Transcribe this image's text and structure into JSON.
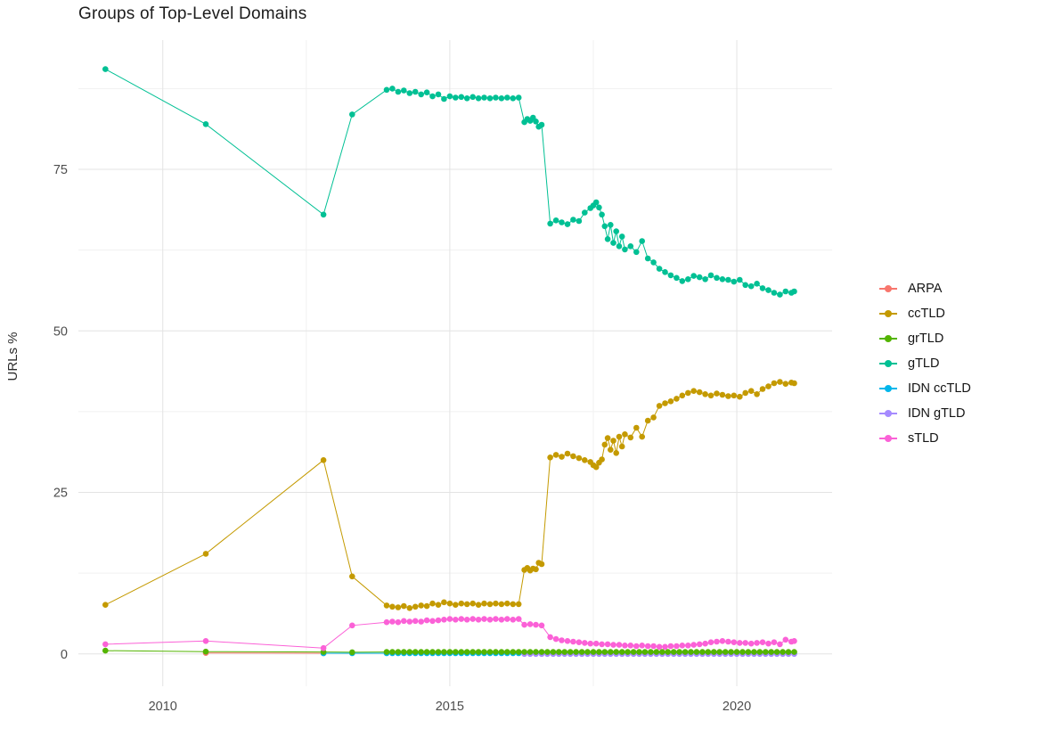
{
  "title": "Groups of Top-Level Domains",
  "legend": {
    "items": [
      {
        "label": "ARPA",
        "color": "#F8766D"
      },
      {
        "label": "ccTLD",
        "color": "#C49A00"
      },
      {
        "label": "grTLD",
        "color": "#53B400"
      },
      {
        "label": "gTLD",
        "color": "#00C094"
      },
      {
        "label": "IDN ccTLD",
        "color": "#00B6EB"
      },
      {
        "label": "IDN gTLD",
        "color": "#A58AFF"
      },
      {
        "label": "sTLD",
        "color": "#FB61D7"
      }
    ]
  },
  "chart_data": {
    "type": "line",
    "title": "Groups of Top-Level Domains",
    "xlabel": "",
    "ylabel": "URLs %",
    "x_ticks": [
      2010,
      2015,
      2020
    ],
    "y_ticks": [
      0,
      25,
      50,
      75
    ],
    "x_minor_ticks": [
      2012.5,
      2017.5
    ],
    "y_minor_ticks": [
      12.5,
      37.5,
      62.5,
      87.5
    ],
    "xlim": [
      2008.53,
      2021.66
    ],
    "ylim": [
      -5,
      95
    ],
    "grid": true,
    "legend_position": "right",
    "background": "#ffffff",
    "series": [
      {
        "name": "ARPA",
        "color": "#F8766D",
        "points": [
          [
            2010.75,
            0.15
          ],
          [
            2012.8,
            0.1
          ]
        ]
      },
      {
        "name": "ccTLD",
        "color": "#C49A00",
        "points": [
          [
            2009.0,
            7.6
          ],
          [
            2010.75,
            15.5
          ],
          [
            2012.8,
            30.0
          ],
          [
            2013.3,
            12.0
          ],
          [
            2013.9,
            7.5
          ],
          [
            2014.0,
            7.3
          ],
          [
            2014.1,
            7.2
          ],
          [
            2014.2,
            7.4
          ],
          [
            2014.3,
            7.1
          ],
          [
            2014.4,
            7.3
          ],
          [
            2014.5,
            7.5
          ],
          [
            2014.6,
            7.4
          ],
          [
            2014.7,
            7.8
          ],
          [
            2014.8,
            7.6
          ],
          [
            2014.9,
            8.0
          ],
          [
            2015.0,
            7.8
          ],
          [
            2015.1,
            7.6
          ],
          [
            2015.2,
            7.8
          ],
          [
            2015.3,
            7.7
          ],
          [
            2015.4,
            7.8
          ],
          [
            2015.5,
            7.6
          ],
          [
            2015.6,
            7.8
          ],
          [
            2015.7,
            7.7
          ],
          [
            2015.8,
            7.8
          ],
          [
            2015.9,
            7.7
          ],
          [
            2016.0,
            7.8
          ],
          [
            2016.1,
            7.7
          ],
          [
            2016.2,
            7.7
          ],
          [
            2016.3,
            13.0
          ],
          [
            2016.35,
            13.3
          ],
          [
            2016.4,
            12.9
          ],
          [
            2016.45,
            13.2
          ],
          [
            2016.5,
            13.1
          ],
          [
            2016.55,
            14.1
          ],
          [
            2016.6,
            13.9
          ],
          [
            2016.75,
            30.4
          ],
          [
            2016.85,
            30.8
          ],
          [
            2016.95,
            30.5
          ],
          [
            2017.05,
            31.0
          ],
          [
            2017.15,
            30.6
          ],
          [
            2017.25,
            30.3
          ],
          [
            2017.35,
            30.0
          ],
          [
            2017.45,
            29.7
          ],
          [
            2017.5,
            29.2
          ],
          [
            2017.55,
            28.9
          ],
          [
            2017.6,
            29.6
          ],
          [
            2017.65,
            30.1
          ],
          [
            2017.7,
            32.4
          ],
          [
            2017.75,
            33.4
          ],
          [
            2017.8,
            31.6
          ],
          [
            2017.85,
            33.0
          ],
          [
            2017.9,
            31.1
          ],
          [
            2017.95,
            33.6
          ],
          [
            2018.0,
            32.1
          ],
          [
            2018.05,
            34.0
          ],
          [
            2018.15,
            33.5
          ],
          [
            2018.25,
            35.0
          ],
          [
            2018.35,
            33.6
          ],
          [
            2018.45,
            36.1
          ],
          [
            2018.55,
            36.6
          ],
          [
            2018.65,
            38.4
          ],
          [
            2018.75,
            38.8
          ],
          [
            2018.85,
            39.1
          ],
          [
            2018.95,
            39.5
          ],
          [
            2019.05,
            40.0
          ],
          [
            2019.15,
            40.4
          ],
          [
            2019.25,
            40.7
          ],
          [
            2019.35,
            40.5
          ],
          [
            2019.45,
            40.2
          ],
          [
            2019.55,
            40.0
          ],
          [
            2019.65,
            40.3
          ],
          [
            2019.75,
            40.1
          ],
          [
            2019.85,
            39.9
          ],
          [
            2019.95,
            40.0
          ],
          [
            2020.05,
            39.8
          ],
          [
            2020.15,
            40.4
          ],
          [
            2020.25,
            40.7
          ],
          [
            2020.35,
            40.2
          ],
          [
            2020.45,
            41.0
          ],
          [
            2020.55,
            41.4
          ],
          [
            2020.65,
            41.9
          ],
          [
            2020.75,
            42.1
          ],
          [
            2020.85,
            41.8
          ],
          [
            2020.95,
            42.0
          ],
          [
            2021.0,
            41.9
          ]
        ]
      },
      {
        "name": "IDN ccTLD",
        "color": "#00B6EB",
        "points": [
          [
            2012.8,
            0.1
          ],
          [
            2013.3,
            0.1
          ]
        ],
        "runs": [
          {
            "from": 2013.9,
            "to": 2021.0,
            "step": 0.1,
            "y": 0.1
          }
        ]
      },
      {
        "name": "IDN gTLD",
        "color": "#A58AFF",
        "points": [],
        "runs": [
          {
            "from": 2016.3,
            "to": 2021.0,
            "step": 0.1,
            "y": 0.0
          }
        ]
      },
      {
        "name": "grTLD",
        "color": "#53B400",
        "points": [
          [
            2009.0,
            0.5
          ],
          [
            2010.75,
            0.35
          ],
          [
            2012.8,
            0.3
          ],
          [
            2013.3,
            0.25
          ]
        ],
        "runs": [
          {
            "from": 2013.9,
            "to": 2021.0,
            "step": 0.1,
            "y": 0.3
          }
        ]
      },
      {
        "name": "gTLD",
        "color": "#00C094",
        "points": [
          [
            2009.0,
            90.5
          ],
          [
            2010.75,
            82.0
          ],
          [
            2012.8,
            68.0
          ],
          [
            2013.3,
            83.5
          ],
          [
            2013.9,
            87.3
          ],
          [
            2014.0,
            87.5
          ],
          [
            2014.1,
            87.0
          ],
          [
            2014.2,
            87.2
          ],
          [
            2014.3,
            86.8
          ],
          [
            2014.4,
            87.0
          ],
          [
            2014.5,
            86.6
          ],
          [
            2014.6,
            86.9
          ],
          [
            2014.7,
            86.3
          ],
          [
            2014.8,
            86.6
          ],
          [
            2014.9,
            85.9
          ],
          [
            2015.0,
            86.3
          ],
          [
            2015.1,
            86.1
          ],
          [
            2015.2,
            86.2
          ],
          [
            2015.3,
            86.0
          ],
          [
            2015.4,
            86.2
          ],
          [
            2015.5,
            86.0
          ],
          [
            2015.6,
            86.1
          ],
          [
            2015.7,
            86.0
          ],
          [
            2015.8,
            86.1
          ],
          [
            2015.9,
            86.0
          ],
          [
            2016.0,
            86.1
          ],
          [
            2016.1,
            86.0
          ],
          [
            2016.2,
            86.1
          ],
          [
            2016.3,
            82.3
          ],
          [
            2016.35,
            82.8
          ],
          [
            2016.4,
            82.5
          ],
          [
            2016.45,
            83.0
          ],
          [
            2016.5,
            82.4
          ],
          [
            2016.55,
            81.6
          ],
          [
            2016.6,
            81.9
          ],
          [
            2016.75,
            66.6
          ],
          [
            2016.85,
            67.1
          ],
          [
            2016.95,
            66.8
          ],
          [
            2017.05,
            66.5
          ],
          [
            2017.15,
            67.2
          ],
          [
            2017.25,
            67.0
          ],
          [
            2017.35,
            68.3
          ],
          [
            2017.45,
            69.0
          ],
          [
            2017.5,
            69.4
          ],
          [
            2017.55,
            69.9
          ],
          [
            2017.6,
            69.1
          ],
          [
            2017.65,
            68.0
          ],
          [
            2017.7,
            66.2
          ],
          [
            2017.75,
            64.2
          ],
          [
            2017.8,
            66.4
          ],
          [
            2017.85,
            63.6
          ],
          [
            2017.9,
            65.4
          ],
          [
            2017.95,
            63.1
          ],
          [
            2018.0,
            64.6
          ],
          [
            2018.05,
            62.6
          ],
          [
            2018.15,
            63.1
          ],
          [
            2018.25,
            62.2
          ],
          [
            2018.35,
            63.9
          ],
          [
            2018.45,
            61.2
          ],
          [
            2018.55,
            60.6
          ],
          [
            2018.65,
            59.6
          ],
          [
            2018.75,
            59.1
          ],
          [
            2018.85,
            58.6
          ],
          [
            2018.95,
            58.2
          ],
          [
            2019.05,
            57.7
          ],
          [
            2019.15,
            58.0
          ],
          [
            2019.25,
            58.5
          ],
          [
            2019.35,
            58.3
          ],
          [
            2019.45,
            58.0
          ],
          [
            2019.55,
            58.6
          ],
          [
            2019.65,
            58.2
          ],
          [
            2019.75,
            58.0
          ],
          [
            2019.85,
            57.9
          ],
          [
            2019.95,
            57.6
          ],
          [
            2020.05,
            57.9
          ],
          [
            2020.15,
            57.1
          ],
          [
            2020.25,
            56.9
          ],
          [
            2020.35,
            57.3
          ],
          [
            2020.45,
            56.6
          ],
          [
            2020.55,
            56.3
          ],
          [
            2020.65,
            55.9
          ],
          [
            2020.75,
            55.6
          ],
          [
            2020.85,
            56.1
          ],
          [
            2020.95,
            55.9
          ],
          [
            2021.0,
            56.1
          ]
        ]
      },
      {
        "name": "sTLD",
        "color": "#FB61D7",
        "points": [
          [
            2009.0,
            1.5
          ],
          [
            2010.75,
            2.0
          ],
          [
            2012.8,
            0.9
          ],
          [
            2013.3,
            4.4
          ],
          [
            2013.9,
            4.9
          ],
          [
            2014.0,
            5.0
          ],
          [
            2014.1,
            4.9
          ],
          [
            2014.2,
            5.1
          ],
          [
            2014.3,
            5.0
          ],
          [
            2014.4,
            5.1
          ],
          [
            2014.5,
            5.0
          ],
          [
            2014.6,
            5.2
          ],
          [
            2014.7,
            5.1
          ],
          [
            2014.8,
            5.2
          ],
          [
            2014.9,
            5.3
          ],
          [
            2015.0,
            5.4
          ],
          [
            2015.1,
            5.3
          ],
          [
            2015.2,
            5.4
          ],
          [
            2015.3,
            5.3
          ],
          [
            2015.4,
            5.4
          ],
          [
            2015.5,
            5.3
          ],
          [
            2015.6,
            5.4
          ],
          [
            2015.7,
            5.3
          ],
          [
            2015.8,
            5.4
          ],
          [
            2015.9,
            5.3
          ],
          [
            2016.0,
            5.4
          ],
          [
            2016.1,
            5.3
          ],
          [
            2016.2,
            5.4
          ],
          [
            2016.3,
            4.5
          ],
          [
            2016.4,
            4.6
          ],
          [
            2016.5,
            4.5
          ],
          [
            2016.6,
            4.4
          ],
          [
            2016.75,
            2.6
          ],
          [
            2016.85,
            2.3
          ],
          [
            2016.95,
            2.1
          ],
          [
            2017.05,
            2.0
          ],
          [
            2017.15,
            1.9
          ],
          [
            2017.25,
            1.8
          ],
          [
            2017.35,
            1.7
          ],
          [
            2017.45,
            1.6
          ],
          [
            2017.55,
            1.6
          ],
          [
            2017.65,
            1.5
          ],
          [
            2017.75,
            1.5
          ],
          [
            2017.85,
            1.4
          ],
          [
            2017.95,
            1.4
          ],
          [
            2018.05,
            1.3
          ],
          [
            2018.15,
            1.3
          ],
          [
            2018.25,
            1.2
          ],
          [
            2018.35,
            1.3
          ],
          [
            2018.45,
            1.2
          ],
          [
            2018.55,
            1.2
          ],
          [
            2018.65,
            1.1
          ],
          [
            2018.75,
            1.1
          ],
          [
            2018.85,
            1.2
          ],
          [
            2018.95,
            1.2
          ],
          [
            2019.05,
            1.3
          ],
          [
            2019.15,
            1.3
          ],
          [
            2019.25,
            1.4
          ],
          [
            2019.35,
            1.5
          ],
          [
            2019.45,
            1.6
          ],
          [
            2019.55,
            1.8
          ],
          [
            2019.65,
            1.9
          ],
          [
            2019.75,
            2.0
          ],
          [
            2019.85,
            1.9
          ],
          [
            2019.95,
            1.8
          ],
          [
            2020.05,
            1.7
          ],
          [
            2020.15,
            1.7
          ],
          [
            2020.25,
            1.6
          ],
          [
            2020.35,
            1.7
          ],
          [
            2020.45,
            1.8
          ],
          [
            2020.55,
            1.6
          ],
          [
            2020.65,
            1.8
          ],
          [
            2020.75,
            1.5
          ],
          [
            2020.85,
            2.2
          ],
          [
            2020.95,
            1.9
          ],
          [
            2021.0,
            2.0
          ]
        ]
      }
    ]
  }
}
